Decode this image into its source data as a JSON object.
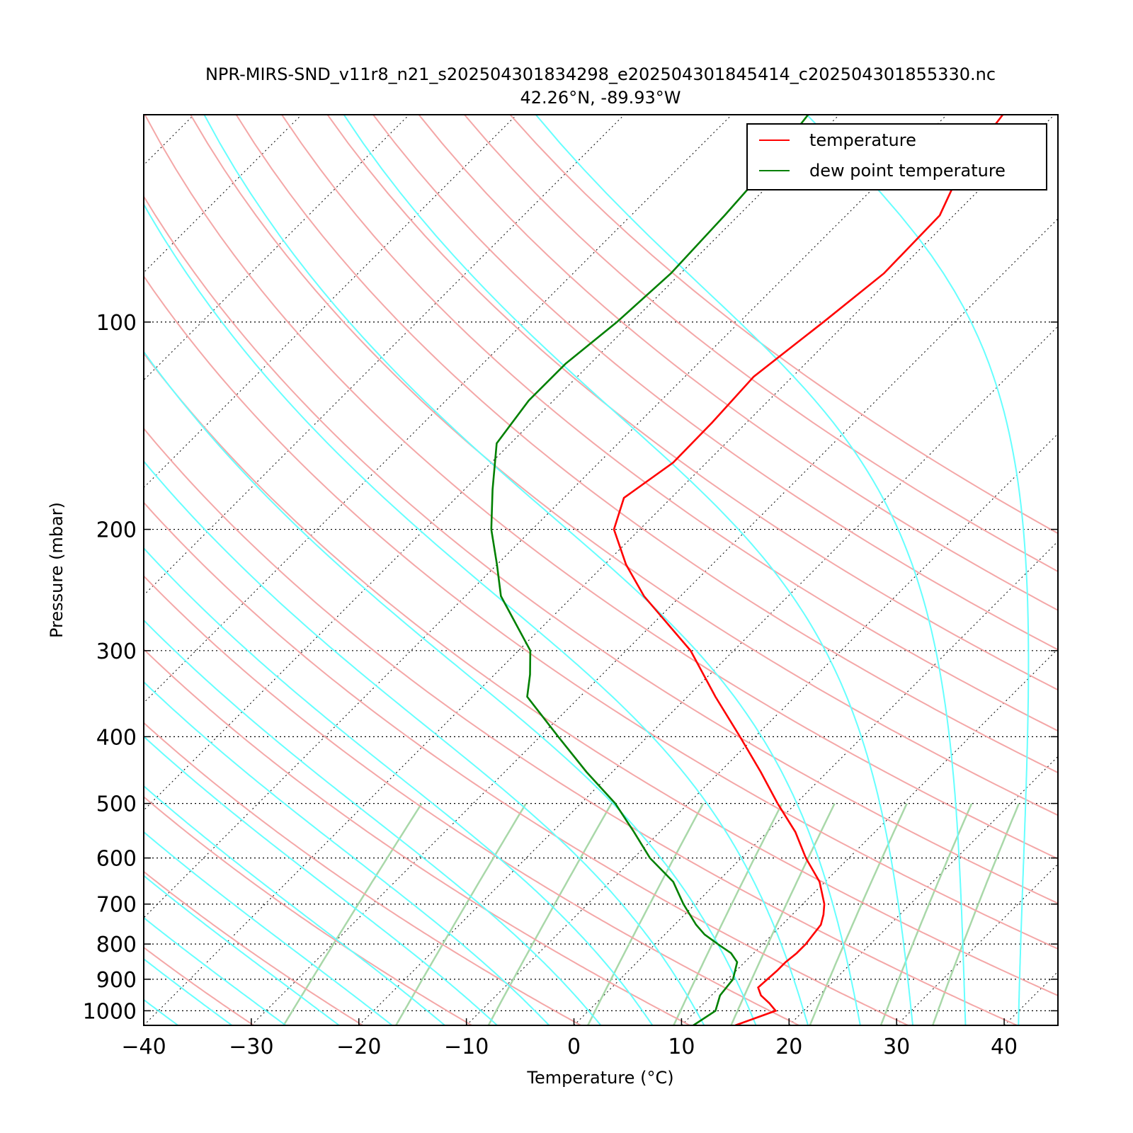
{
  "chart_data": {
    "type": "line",
    "subtype": "skew-T log-P diagram",
    "title": "NPR-MIRS-SND_v11r8_n21_s202504301834298_e202504301845414_c202504301855330.nc",
    "subtitle": "42.26°N, -89.93°W",
    "xlabel": "Temperature (°C)",
    "ylabel": "Pressure (mbar)",
    "xlim": [
      -40,
      45
    ],
    "ylim": [
      1050,
      50
    ],
    "y_scale": "log",
    "x_ticks": [
      "−40",
      "−30",
      "−20",
      "−10",
      "0",
      "10",
      "20",
      "30",
      "40"
    ],
    "x_tick_values": [
      -40,
      -30,
      -20,
      -10,
      0,
      10,
      20,
      30,
      40
    ],
    "y_ticks": [
      "100",
      "200",
      "300",
      "400",
      "500",
      "600",
      "700",
      "800",
      "900",
      "1000"
    ],
    "y_tick_values": [
      100,
      200,
      300,
      400,
      500,
      600,
      700,
      800,
      900,
      1000
    ],
    "grid": true,
    "legend_position": "top-right",
    "colors": {
      "temperature": "#ff0000",
      "dewpoint": "#008000",
      "dry_adiabat": "#f4a7a7",
      "moist_adiabat": "#66ffff",
      "mixing_ratio": "#a9d8a9",
      "grid": "#000000"
    },
    "series": [
      {
        "name": "temperature",
        "color": "#ff0000",
        "pressure": [
          1050,
          1000,
          975,
          950,
          925,
          900,
          875,
          850,
          825,
          800,
          775,
          750,
          725,
          700,
          650,
          600,
          550,
          500,
          450,
          400,
          350,
          300,
          250,
          225,
          200,
          180,
          160,
          140,
          120,
          100,
          85,
          70,
          60,
          50
        ],
        "temperature": [
          15.0,
          17.4,
          16.1,
          14.6,
          13.6,
          13.7,
          13.8,
          13.8,
          14.0,
          14.0,
          13.8,
          13.6,
          12.9,
          12.0,
          9.5,
          6.0,
          2.6,
          -1.7,
          -6.2,
          -11.4,
          -17.4,
          -24.0,
          -33.4,
          -38.0,
          -42.4,
          -44.4,
          -43.1,
          -43.2,
          -43.6,
          -42.2,
          -41.1,
          -41.3,
          -43.6,
          -44.8
        ]
      },
      {
        "name": "dew point temperature",
        "color": "#008000",
        "pressure": [
          1050,
          1000,
          950,
          900,
          850,
          825,
          800,
          775,
          750,
          700,
          650,
          600,
          550,
          500,
          450,
          400,
          350,
          325,
          300,
          250,
          225,
          200,
          175,
          150,
          130,
          115,
          100,
          85,
          70,
          60,
          50
        ],
        "temperature": [
          11.1,
          11.8,
          10.8,
          10.5,
          9.3,
          7.9,
          5.8,
          3.7,
          2.0,
          -1.1,
          -4.1,
          -8.5,
          -12.4,
          -16.8,
          -22.4,
          -28.3,
          -34.9,
          -36.7,
          -38.9,
          -46.7,
          -50.0,
          -53.8,
          -57.4,
          -61.3,
          -62.3,
          -62.3,
          -61.4,
          -60.9,
          -61.3,
          -61.8,
          -62.9
        ]
      }
    ],
    "background_lines": {
      "dry_adiabats_theta_K": [
        210,
        220,
        230,
        240,
        250,
        260,
        270,
        280,
        290,
        300,
        310,
        320,
        330,
        340,
        350,
        360,
        370,
        380,
        390,
        400,
        410,
        420,
        430
      ],
      "moist_adiabats_start_C": [
        -40,
        -35,
        -30,
        -25,
        -20,
        -15,
        -10,
        -5,
        0,
        5,
        10,
        15,
        20,
        25,
        30,
        35,
        40,
        45
      ],
      "mixing_ratio_gkg": [
        0.4,
        1,
        2,
        4,
        7,
        10,
        16,
        24,
        32
      ]
    }
  },
  "legend": {
    "temperature_label": "temperature",
    "dewpoint_label": "dew point temperature"
  }
}
